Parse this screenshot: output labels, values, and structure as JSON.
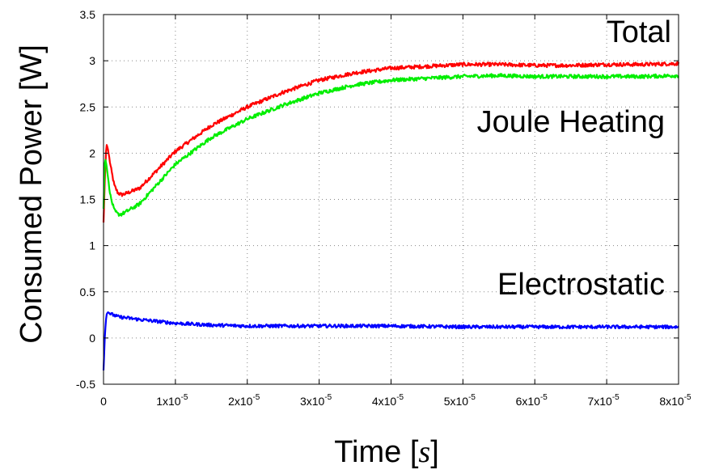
{
  "chart_data": {
    "type": "line",
    "xlabel_text": "Time ",
    "xlabel_unit_open": "[",
    "xlabel_unit": "s",
    "xlabel_unit_close": "]",
    "ylabel_text": "Consumed Power ",
    "ylabel_unit": "[W]",
    "xlim": [
      0,
      8e-05
    ],
    "ylim": [
      -0.5,
      3.5
    ],
    "grid": true,
    "x_ticks": [
      {
        "value": 0,
        "base": "0",
        "exp": ""
      },
      {
        "value": 1e-05,
        "base": "1x10",
        "exp": "-5"
      },
      {
        "value": 2e-05,
        "base": "2x10",
        "exp": "-5"
      },
      {
        "value": 3e-05,
        "base": "3x10",
        "exp": "-5"
      },
      {
        "value": 4e-05,
        "base": "4x10",
        "exp": "-5"
      },
      {
        "value": 5e-05,
        "base": "5x10",
        "exp": "-5"
      },
      {
        "value": 6e-05,
        "base": "6x10",
        "exp": "-5"
      },
      {
        "value": 7e-05,
        "base": "7x10",
        "exp": "-5"
      },
      {
        "value": 8e-05,
        "base": "8x10",
        "exp": "-5"
      }
    ],
    "y_ticks": [
      {
        "value": -0.5,
        "label": "-0.5"
      },
      {
        "value": 0,
        "label": "0"
      },
      {
        "value": 0.5,
        "label": "0.5"
      },
      {
        "value": 1,
        "label": "1"
      },
      {
        "value": 1.5,
        "label": "1.5"
      },
      {
        "value": 2,
        "label": "2"
      },
      {
        "value": 2.5,
        "label": "2.5"
      },
      {
        "value": 3,
        "label": "3"
      },
      {
        "value": 3.5,
        "label": "3.5"
      }
    ],
    "annotations": {
      "total": "Total",
      "joule": "Joule Heating",
      "electrostatic": "Electrostatic"
    },
    "series": [
      {
        "name": "Total",
        "color": "#ff0000",
        "noise": 0.02,
        "x": [
          0,
          2e-07,
          4e-07,
          6e-07,
          1e-06,
          1.5e-06,
          2e-06,
          2.5e-06,
          3e-06,
          5e-06,
          1e-05,
          1.5e-05,
          2e-05,
          2.5e-05,
          3e-05,
          3.5e-05,
          4e-05,
          4.5e-05,
          5e-05,
          5.5e-05,
          6e-05,
          6.5e-05,
          7e-05,
          7.5e-05,
          8e-05
        ],
        "y": [
          1.25,
          1.75,
          2.1,
          2.05,
          1.85,
          1.65,
          1.57,
          1.55,
          1.56,
          1.62,
          2.02,
          2.3,
          2.5,
          2.66,
          2.79,
          2.87,
          2.92,
          2.94,
          2.96,
          2.96,
          2.95,
          2.95,
          2.96,
          2.96,
          2.97
        ]
      },
      {
        "name": "Joule Heating",
        "color": "#00ee00",
        "noise": 0.02,
        "x": [
          0,
          2e-07,
          4e-07,
          6e-07,
          1e-06,
          1.5e-06,
          2e-06,
          2.5e-06,
          3e-06,
          5e-06,
          1e-05,
          1.5e-05,
          2e-05,
          2.5e-05,
          3e-05,
          3.5e-05,
          4e-05,
          4.5e-05,
          5e-05,
          5.5e-05,
          6e-05,
          6.5e-05,
          7e-05,
          7.5e-05,
          8e-05
        ],
        "y": [
          1.4,
          1.95,
          1.88,
          1.75,
          1.52,
          1.38,
          1.34,
          1.34,
          1.36,
          1.45,
          1.88,
          2.17,
          2.37,
          2.52,
          2.65,
          2.74,
          2.79,
          2.81,
          2.83,
          2.84,
          2.83,
          2.83,
          2.83,
          2.83,
          2.84
        ]
      },
      {
        "name": "Electrostatic",
        "color": "#0000ff",
        "noise": 0.018,
        "x": [
          0,
          2e-07,
          4e-07,
          6e-07,
          1e-06,
          2e-06,
          3e-06,
          5e-06,
          1e-05,
          1.5e-05,
          2e-05,
          3e-05,
          4e-05,
          5e-05,
          6e-05,
          7e-05,
          8e-05
        ],
        "y": [
          -0.35,
          0.05,
          0.25,
          0.28,
          0.26,
          0.23,
          0.22,
          0.2,
          0.16,
          0.14,
          0.13,
          0.13,
          0.13,
          0.12,
          0.12,
          0.12,
          0.12
        ]
      }
    ]
  }
}
